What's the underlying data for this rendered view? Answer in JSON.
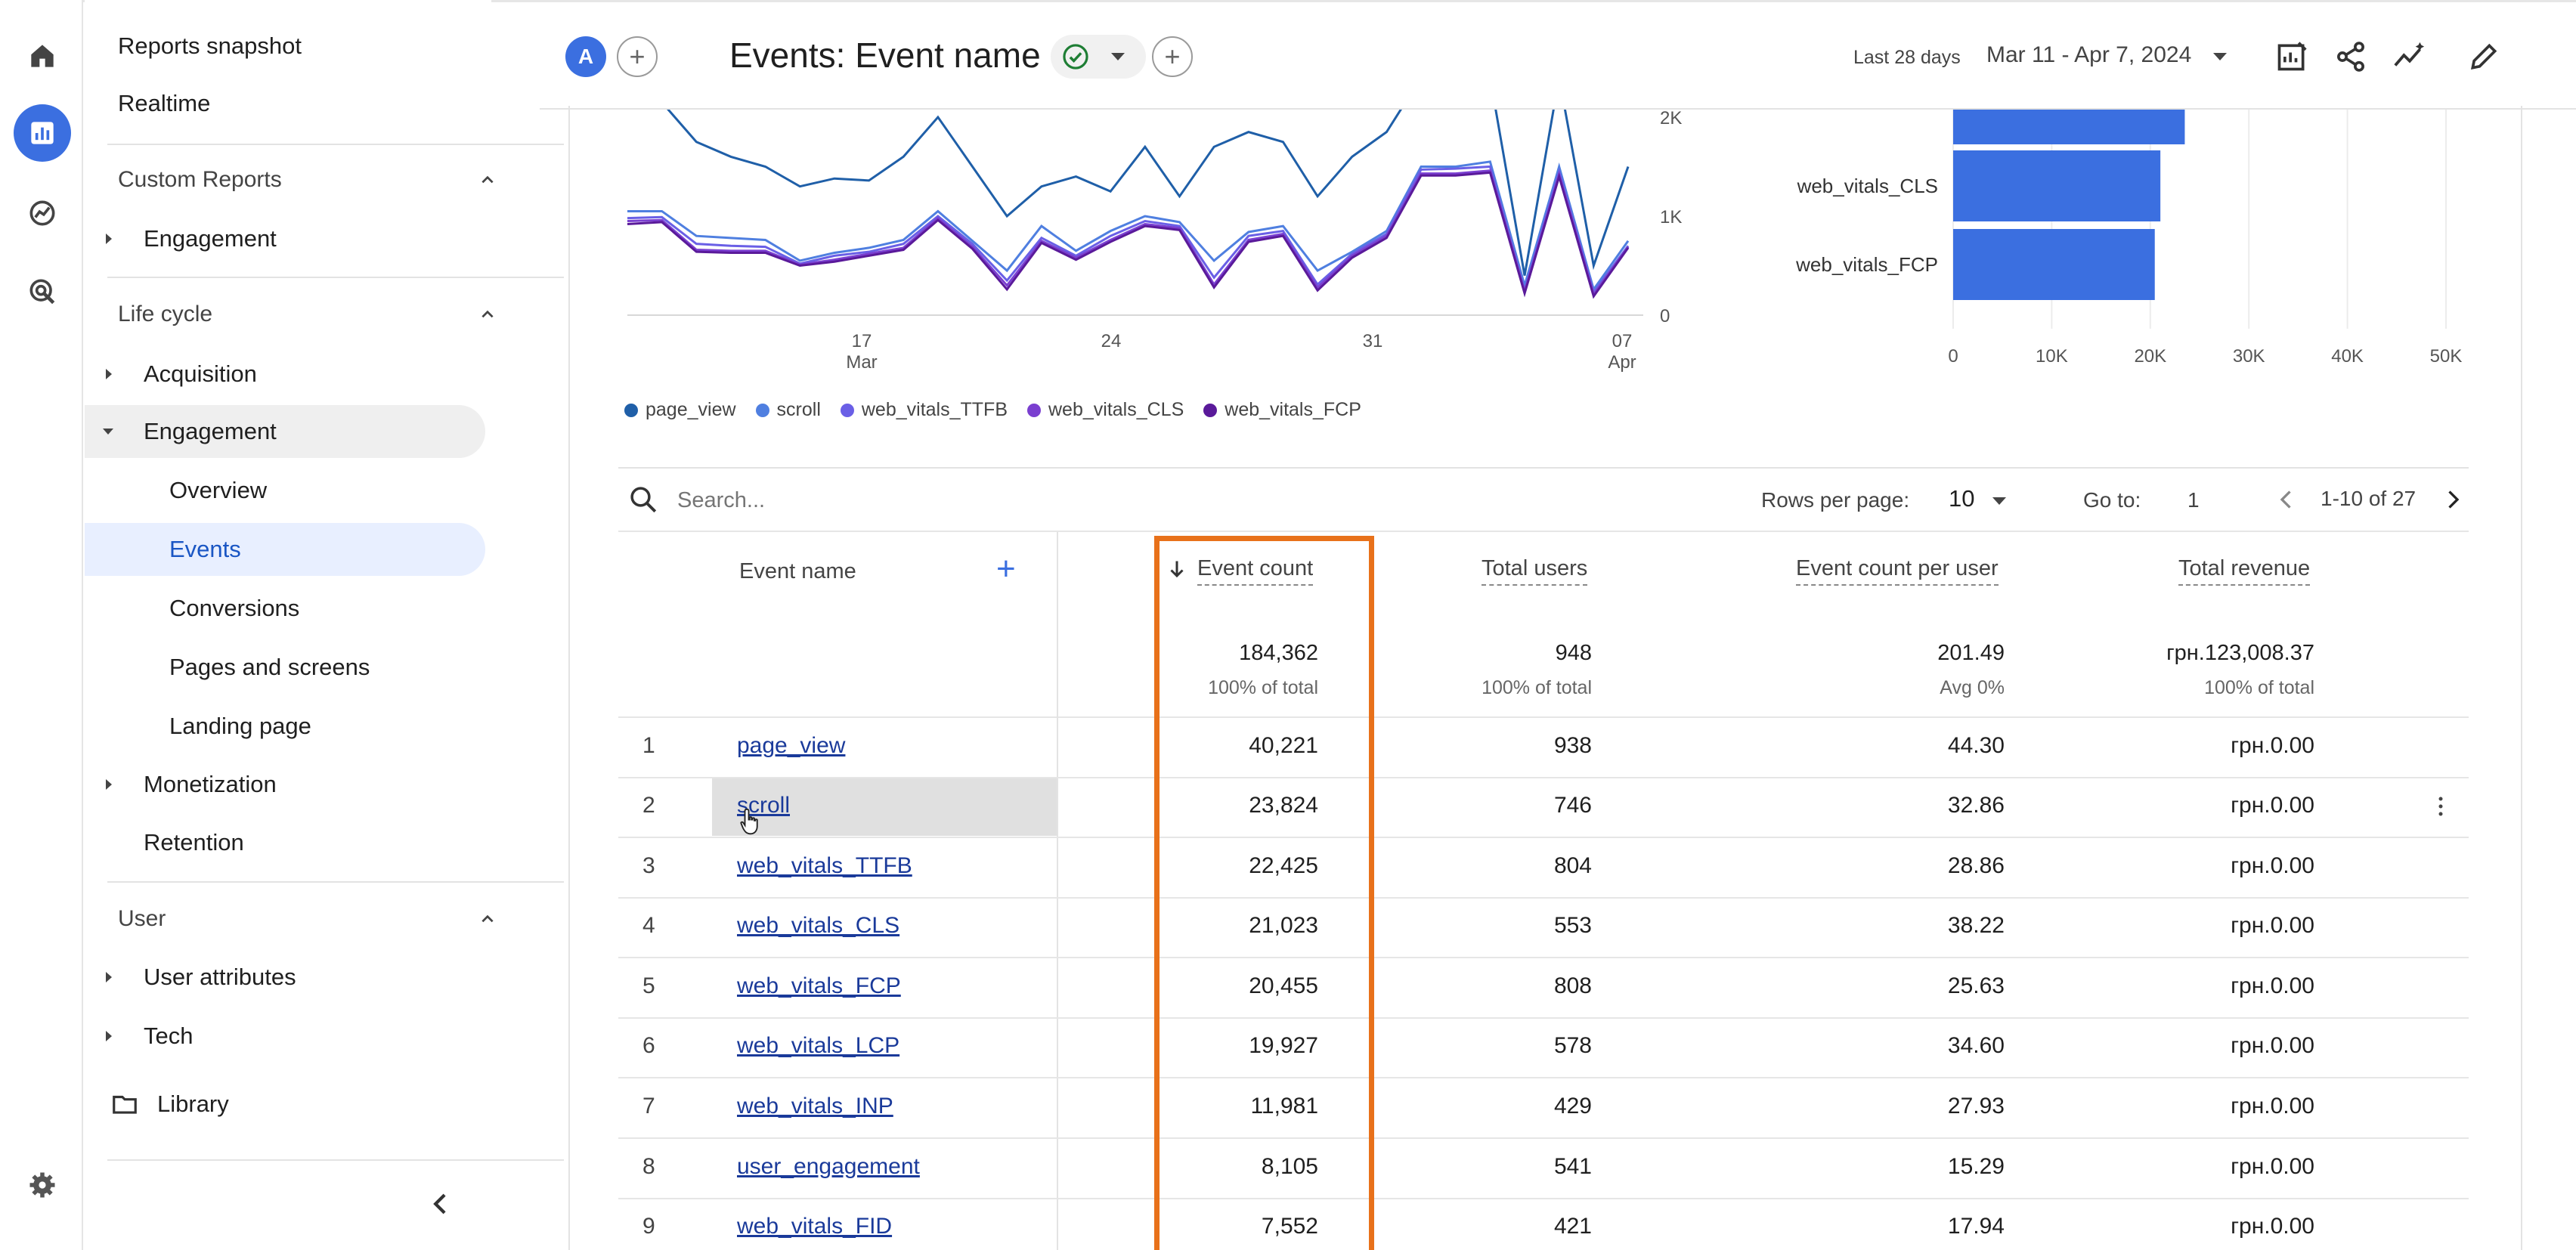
{
  "header": {
    "avatar_letter": "A",
    "title": "Events: Event name",
    "date_label": "Last 28 days",
    "date_range": "Mar 11 - Apr 7, 2024"
  },
  "rail": {
    "icons": [
      "home-icon",
      "reports-icon",
      "explore-icon",
      "advertising-icon",
      "settings-icon"
    ]
  },
  "sidebar": {
    "reports_snapshot": "Reports snapshot",
    "realtime": "Realtime",
    "custom_reports": "Custom Reports",
    "custom_engagement": "Engagement",
    "life_cycle": "Life cycle",
    "acquisition": "Acquisition",
    "engagement": "Engagement",
    "overview": "Overview",
    "events": "Events",
    "conversions": "Conversions",
    "pages_and_screens": "Pages and screens",
    "landing_page": "Landing page",
    "monetization": "Monetization",
    "retention": "Retention",
    "user": "User",
    "user_attributes": "User attributes",
    "tech": "Tech",
    "library": "Library"
  },
  "colors": {
    "accent": "#3b6fe0",
    "highlight": "#e8711a",
    "series": [
      "#1f5fa8",
      "#4f7fe0",
      "#6a5fe6",
      "#7a3fd0",
      "#5a1a9a"
    ]
  },
  "chart_data": [
    {
      "type": "line",
      "x_ticks": [
        "17\nMar",
        "24",
        "31",
        "07\nApr"
      ],
      "y_ticks": [
        "0",
        "1K",
        "2K"
      ],
      "series": [
        {
          "name": "page_view",
          "values": [
            2200,
            2150,
            1750,
            1600,
            1500,
            1300,
            1380,
            1360,
            1600,
            2000,
            1500,
            1000,
            1300,
            1400,
            1250,
            1700,
            1200,
            1700,
            1850,
            1750,
            1200,
            1600,
            1850,
            2400,
            2800,
            2400,
            400,
            2800,
            500,
            1500
          ]
        },
        {
          "name": "scroll",
          "values": [
            1050,
            1050,
            800,
            780,
            760,
            550,
            630,
            680,
            760,
            1050,
            750,
            450,
            900,
            650,
            850,
            1000,
            940,
            550,
            840,
            900,
            450,
            640,
            850,
            1500,
            1500,
            1550,
            300,
            1500,
            260,
            750
          ]
        },
        {
          "name": "web_vitals_TTFB",
          "values": [
            980,
            990,
            720,
            700,
            690,
            520,
            600,
            640,
            720,
            1000,
            720,
            350,
            780,
            600,
            800,
            950,
            900,
            380,
            800,
            850,
            310,
            620,
            820,
            1470,
            1480,
            1500,
            250,
            1450,
            230,
            700
          ]
        },
        {
          "name": "web_vitals_CLS",
          "values": [
            950,
            960,
            660,
            650,
            650,
            510,
            560,
            620,
            680,
            980,
            690,
            300,
            750,
            580,
            760,
            920,
            880,
            310,
            760,
            820,
            280,
            600,
            800,
            1430,
            1430,
            1460,
            240,
            1420,
            210,
            690
          ]
        },
        {
          "name": "web_vitals_FCP",
          "values": [
            920,
            940,
            640,
            630,
            630,
            500,
            540,
            600,
            660,
            960,
            670,
            260,
            730,
            560,
            740,
            900,
            860,
            280,
            740,
            800,
            250,
            580,
            780,
            1410,
            1410,
            1440,
            220,
            1400,
            190,
            680
          ]
        }
      ],
      "ylim": [
        0,
        2000
      ]
    },
    {
      "type": "bar",
      "categories": [
        "web_vitals_TTFB",
        "web_vitals_CLS",
        "web_vitals_FCP"
      ],
      "values": [
        22425,
        21023,
        20455
      ],
      "x_ticks": [
        "0",
        "10K",
        "20K",
        "30K",
        "40K",
        "50K"
      ],
      "xlim": [
        0,
        50000
      ]
    }
  ],
  "table": {
    "search_placeholder": "Search...",
    "rows_per_page_label": "Rows per page:",
    "rows_per_page_value": "10",
    "goto_label": "Go to:",
    "goto_value": "1",
    "page_range": "1-10 of 27",
    "columns": {
      "event_name": "Event name",
      "event_count": "Event count",
      "total_users": "Total users",
      "event_count_per_user": "Event count per user",
      "total_revenue": "Total revenue"
    },
    "totals": {
      "event_count": "184,362",
      "event_count_sub": "100% of total",
      "total_users": "948",
      "total_users_sub": "100% of total",
      "per_user": "201.49",
      "per_user_sub": "Avg 0%",
      "revenue": "грн.123,008.37",
      "revenue_sub": "100% of total"
    },
    "rows": [
      {
        "idx": "1",
        "name": "page_view",
        "count": "40,221",
        "users": "938",
        "per_user": "44.30",
        "revenue": "грн.0.00"
      },
      {
        "idx": "2",
        "name": "scroll",
        "count": "23,824",
        "users": "746",
        "per_user": "32.86",
        "revenue": "грн.0.00"
      },
      {
        "idx": "3",
        "name": "web_vitals_TTFB",
        "count": "22,425",
        "users": "804",
        "per_user": "28.86",
        "revenue": "грн.0.00"
      },
      {
        "idx": "4",
        "name": "web_vitals_CLS",
        "count": "21,023",
        "users": "553",
        "per_user": "38.22",
        "revenue": "грн.0.00"
      },
      {
        "idx": "5",
        "name": "web_vitals_FCP",
        "count": "20,455",
        "users": "808",
        "per_user": "25.63",
        "revenue": "грн.0.00"
      },
      {
        "idx": "6",
        "name": "web_vitals_LCP",
        "count": "19,927",
        "users": "578",
        "per_user": "34.60",
        "revenue": "грн.0.00"
      },
      {
        "idx": "7",
        "name": "web_vitals_INP",
        "count": "11,981",
        "users": "429",
        "per_user": "27.93",
        "revenue": "грн.0.00"
      },
      {
        "idx": "8",
        "name": "user_engagement",
        "count": "8,105",
        "users": "541",
        "per_user": "15.29",
        "revenue": "грн.0.00"
      },
      {
        "idx": "9",
        "name": "web_vitals_FID",
        "count": "7,552",
        "users": "421",
        "per_user": "17.94",
        "revenue": "грн.0.00"
      }
    ]
  }
}
